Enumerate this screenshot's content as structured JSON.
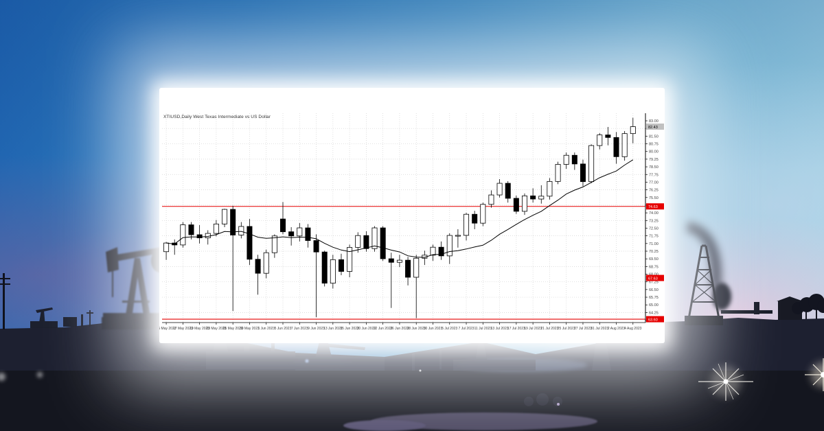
{
  "background": {
    "alt": "oil pumpjack and derrick silhouettes at dusk with lens flare",
    "colors": {
      "sky_blue": "#2e7cbe",
      "sky_cyan": "#a3d4e6",
      "dusk_pink": "#f0c8dc",
      "cloud_purple": "#8a7bb0",
      "ground_dark": "#1c1f2c",
      "silhouette": "#161823",
      "flare_white": "#ffffff"
    }
  },
  "card": {
    "bg": "#ffffff"
  },
  "chart_data": {
    "type": "candlestick",
    "title": "XTIUSD,Daily West Texas Intermediate vs US Dollar",
    "ylim": [
      63.27,
      83.74
    ],
    "y_axis": {
      "max_label": 83.0,
      "min_label": 63.5,
      "step": 0.75
    },
    "grid": {
      "on": true,
      "h_step": 1.5,
      "color": "#d2d2d2"
    },
    "up_color": "#ffffff",
    "down_color": "#000000",
    "outline_color": "#000000",
    "ma_period": 13,
    "ma_color": "#000000",
    "hline_color": "#e60000",
    "hlines": [
      {
        "price": 74.63
      },
      {
        "price": 63.6
      }
    ],
    "price_labels": [
      {
        "text": "82.43",
        "price": 82.43,
        "bg": "#c0c0c0",
        "fg": "#000000",
        "name": "bid-price"
      },
      {
        "text": "74.63",
        "price": 74.63,
        "bg": "#e60000",
        "fg": "#ffffff",
        "name": "resistance-level"
      },
      {
        "text": "67.63",
        "price": 67.63,
        "bg": "#e60000",
        "fg": "#ffffff",
        "name": "mid-level"
      },
      {
        "text": "63.60",
        "price": 63.6,
        "bg": "#e60000",
        "fg": "#ffffff",
        "name": "support-level"
      }
    ],
    "x_labels": [
      "15 May 2023",
      "17 May 2023",
      "19 May 2023",
      "23 May 2023",
      "25 May 2023",
      "30 May 2023",
      "1 Jun 2023",
      "5 Jun 2023",
      "7 Jun 2023",
      "9 Jun 2023",
      "13 Jun 2023",
      "15 Jun 2023",
      "20 Jun 2023",
      "22 Jun 2023",
      "26 Jun 2023",
      "28 Jun 2023",
      "30 Jun 2023",
      "5 Jul 2023",
      "7 Jul 2023",
      "11 Jul 2023",
      "13 Jul 2023",
      "17 Jul 2023",
      "19 Jul 2023",
      "21 Jul 2023",
      "25 Jul 2023",
      "27 Jul 2023",
      "31 Jul 2023",
      "2 Aug 2023",
      "4 Aug 2023"
    ],
    "bars_per_label": 2,
    "candles": [
      [
        70.2,
        71.15,
        69.4,
        71.05
      ],
      [
        71.05,
        71.4,
        69.9,
        70.86
      ],
      [
        70.86,
        73.1,
        70.6,
        72.83
      ],
      [
        72.83,
        73.1,
        71.4,
        71.86
      ],
      [
        71.86,
        72.8,
        71.0,
        71.55
      ],
      [
        71.55,
        72.3,
        70.9,
        71.99
      ],
      [
        71.99,
        73.3,
        71.7,
        72.91
      ],
      [
        72.91,
        74.4,
        72.6,
        74.34
      ],
      [
        74.34,
        74.7,
        64.4,
        71.83
      ],
      [
        71.83,
        73.1,
        71.5,
        72.67
      ],
      [
        72.67,
        73.4,
        68.9,
        69.46
      ],
      [
        69.46,
        69.9,
        66.0,
        68.09
      ],
      [
        68.09,
        70.4,
        67.6,
        70.1
      ],
      [
        70.1,
        71.9,
        69.6,
        71.74
      ],
      [
        73.4,
        75.06,
        71.9,
        72.15
      ],
      [
        72.15,
        72.6,
        70.8,
        71.74
      ],
      [
        71.74,
        73.0,
        71.2,
        72.53
      ],
      [
        72.53,
        72.9,
        70.6,
        71.29
      ],
      [
        71.29,
        71.9,
        63.8,
        70.17
      ],
      [
        70.17,
        70.3,
        66.8,
        67.12
      ],
      [
        67.12,
        69.9,
        66.6,
        69.42
      ],
      [
        69.42,
        70.0,
        67.9,
        68.27
      ],
      [
        68.27,
        70.9,
        67.7,
        70.62
      ],
      [
        70.62,
        72.1,
        70.1,
        71.78
      ],
      [
        71.78,
        72.2,
        70.2,
        70.5
      ],
      [
        70.5,
        72.7,
        70.2,
        72.53
      ],
      [
        72.53,
        72.7,
        69.3,
        69.51
      ],
      [
        69.51,
        70.1,
        64.7,
        69.16
      ],
      [
        69.16,
        69.9,
        68.7,
        69.37
      ],
      [
        69.37,
        69.7,
        66.9,
        67.7
      ],
      [
        67.7,
        69.9,
        63.7,
        69.56
      ],
      [
        69.56,
        70.3,
        68.9,
        69.86
      ],
      [
        69.86,
        70.9,
        69.3,
        70.64
      ],
      [
        70.64,
        71.2,
        69.4,
        69.79
      ],
      [
        69.79,
        72.0,
        69.0,
        71.79
      ],
      [
        71.79,
        72.4,
        70.6,
        71.8
      ],
      [
        71.8,
        74.0,
        71.3,
        73.86
      ],
      [
        73.86,
        74.2,
        72.4,
        72.99
      ],
      [
        72.99,
        75.0,
        72.7,
        74.83
      ],
      [
        74.83,
        76.2,
        74.5,
        75.75
      ],
      [
        75.75,
        77.3,
        75.5,
        76.89
      ],
      [
        76.89,
        77.1,
        75.0,
        75.42
      ],
      [
        75.42,
        75.7,
        73.9,
        74.15
      ],
      [
        74.15,
        75.9,
        73.8,
        75.66
      ],
      [
        75.66,
        76.4,
        75.0,
        75.35
      ],
      [
        75.35,
        76.7,
        74.9,
        75.63
      ],
      [
        75.63,
        77.4,
        75.3,
        77.07
      ],
      [
        77.07,
        79.0,
        76.8,
        78.74
      ],
      [
        78.74,
        79.9,
        78.3,
        79.63
      ],
      [
        79.63,
        79.9,
        78.2,
        78.78
      ],
      [
        78.78,
        79.2,
        76.6,
        77.05
      ],
      [
        77.05,
        80.7,
        76.9,
        80.58
      ],
      [
        80.58,
        81.8,
        80.2,
        81.62
      ],
      [
        81.62,
        82.4,
        80.6,
        81.37
      ],
      [
        81.37,
        81.9,
        78.8,
        79.49
      ],
      [
        79.49,
        82.0,
        79.1,
        81.75
      ],
      [
        81.75,
        83.3,
        80.8,
        82.43
      ]
    ]
  }
}
